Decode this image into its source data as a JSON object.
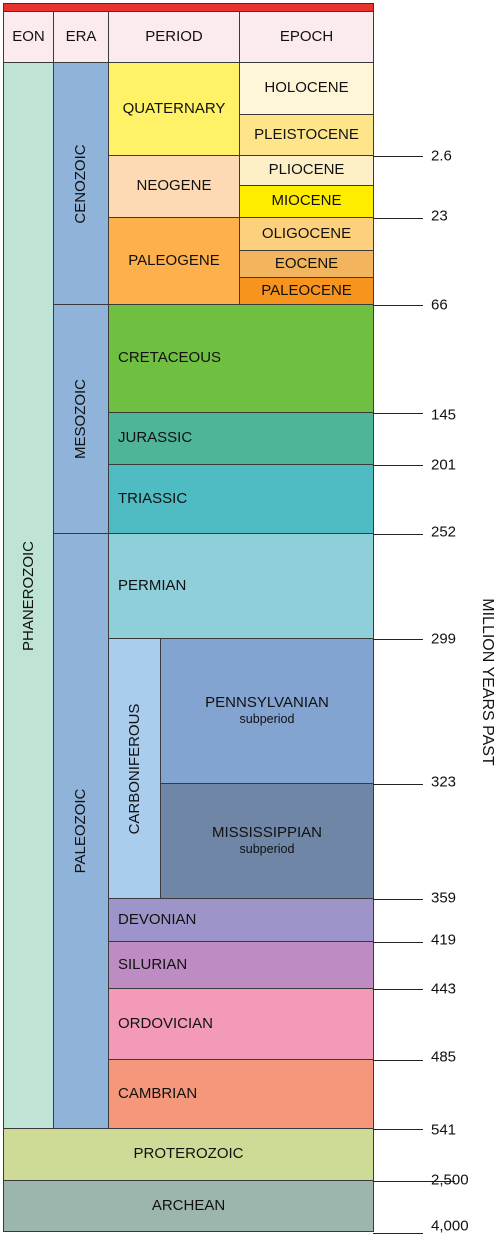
{
  "header": {
    "eon": "EON",
    "era": "ERA",
    "period": "PERIOD",
    "epoch": "EPOCH"
  },
  "eons": {
    "phanerozoic": "PHANEROZOIC",
    "proterozoic": "PROTEROZOIC",
    "archean": "ARCHEAN"
  },
  "eras": {
    "cenozoic": "CENOZOIC",
    "mesozoic": "MESOZOIC",
    "paleozoic": "PALEOZOIC"
  },
  "periods": {
    "quaternary": "QUATERNARY",
    "neogene": "NEOGENE",
    "paleogene": "PALEOGENE",
    "cretaceous": "CRETACEOUS",
    "jurassic": "JURASSIC",
    "triassic": "TRIASSIC",
    "permian": "PERMIAN",
    "carboniferous": "CARBONIFEROUS",
    "devonian": "DEVONIAN",
    "silurian": "SILURIAN",
    "ordovician": "ORDOVICIAN",
    "cambrian": "CAMBRIAN"
  },
  "subperiods": {
    "pennsylvanian": "PENNSYLVANIAN",
    "mississippian": "MISSISSIPPIAN",
    "subperiod_label": "subperiod"
  },
  "epochs": {
    "holocene": "HOLOCENE",
    "pleistocene": "PLEISTOCENE",
    "pliocene": "PLIOCENE",
    "miocene": "MIOCENE",
    "oligocene": "OLIGOCENE",
    "eocene": "EOCENE",
    "paleocene": "PALEOCENE"
  },
  "ages": [
    "2.6",
    "23",
    "66",
    "145",
    "201",
    "252",
    "299",
    "323",
    "359",
    "419",
    "443",
    "485",
    "541",
    "2,500",
    "4,000"
  ],
  "axis_label": "MILLION YEARS PAST",
  "colors": {
    "phanerozoic": "#bfe3d4",
    "cenozoic": "#8fb3d9",
    "quaternary": "#fff266",
    "neogene": "#fddab3",
    "paleogene": "#fdb04c",
    "holocene": "#fef6d6",
    "pleistocene": "#ffe58a",
    "pliocene": "#fdefc6",
    "miocene": "#ffed00",
    "oligocene": "#fdd07e",
    "eocene": "#f2b55e",
    "paleocene": "#f7941d",
    "cretaceous": "#6fc041",
    "jurassic": "#4fb598",
    "triassic": "#4fbcc4",
    "permian": "#8fcfda",
    "carboniferous": "#aacdee",
    "pennsylvanian": "#83a3d1",
    "mississippian": "#6f86a6",
    "devonian": "#9d95c9",
    "silurian": "#bd8cc2",
    "ordovician": "#f39ab8",
    "cambrian": "#f5977a",
    "proterozoic": "#cddb96",
    "archean": "#9cb5ad",
    "header": "#fcebed"
  }
}
